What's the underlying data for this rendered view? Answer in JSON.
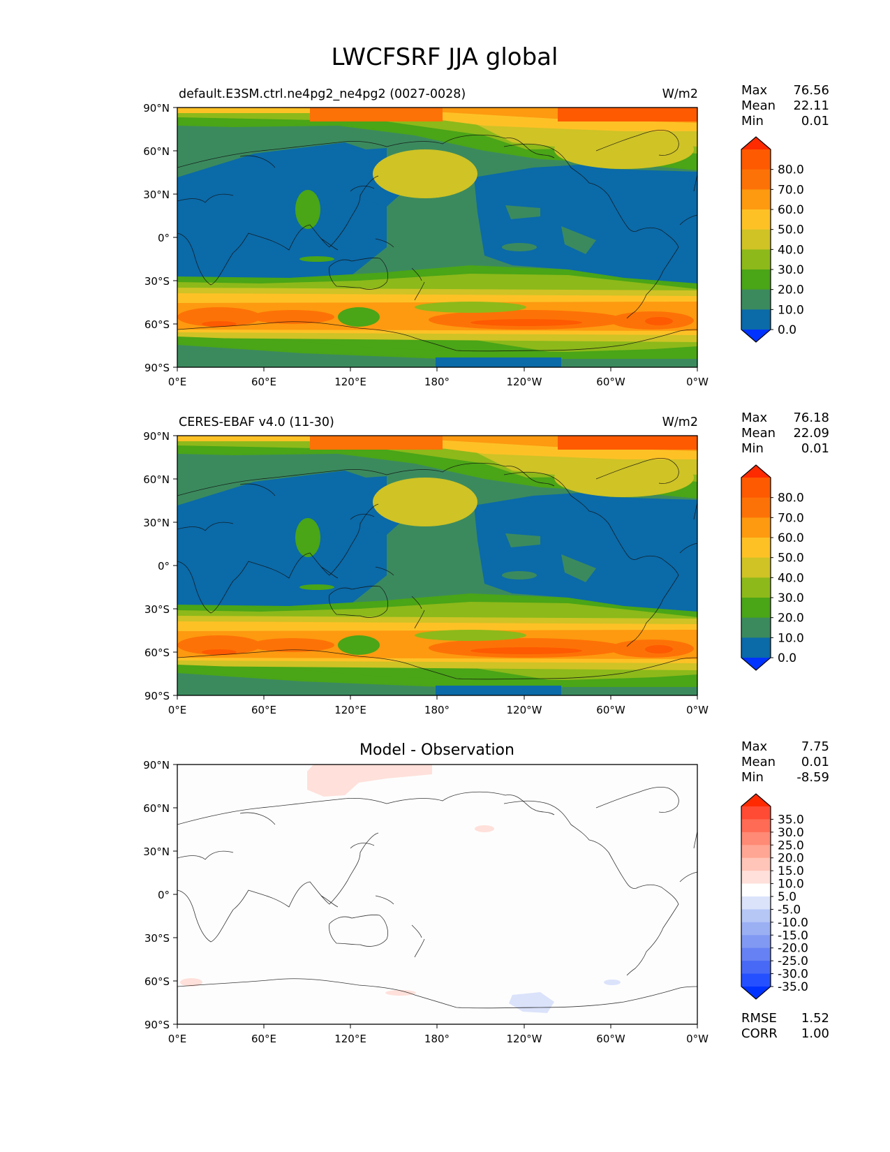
{
  "figure": {
    "title": "LWCFSRF JJA global"
  },
  "axis_ticks": {
    "lat": [
      "90°N",
      "60°N",
      "30°N",
      "0°",
      "30°S",
      "60°S",
      "90°S"
    ],
    "lon": [
      "0°E",
      "60°E",
      "120°E",
      "180°",
      "120°W",
      "60°W",
      "0°W"
    ]
  },
  "colors": {
    "field_levels": [
      "#0033ff",
      "#0b6aa8",
      "#3b8a5e",
      "#4aa517",
      "#8db91a",
      "#cfc326",
      "#fdc126",
      "#fd9a10",
      "#fd7206",
      "#fd5a02",
      "#fe2a00"
    ],
    "diff_levels": [
      "#0033ff",
      "#2550ff",
      "#4869f5",
      "#6681f3",
      "#8199f2",
      "#9bb0f3",
      "#b6c6f5",
      "#dbe3fb",
      "#ffffff",
      "#ffe0da",
      "#ffc5b8",
      "#ffa694",
      "#ff8a75",
      "#ff6b55",
      "#ff4a34",
      "#ff2a00"
    ]
  },
  "chart_data": [
    {
      "type": "heatmap",
      "panel": "model",
      "title": "default.E3SM.ctrl.ne4pg2_ne4pg2 (0027-0028)",
      "units": "W/m2",
      "stats": {
        "max_label": "Max",
        "max": "76.56",
        "mean_label": "Mean",
        "mean": "22.11",
        "min_label": "Min",
        "min": "0.01"
      },
      "colorbar_ticks": [
        "80.0",
        "70.0",
        "60.0",
        "50.0",
        "40.0",
        "30.0",
        "20.0",
        "10.0",
        "0.0"
      ],
      "xlim": [
        0,
        360
      ],
      "ylim": [
        -90,
        90
      ],
      "zonal_profile": {
        "lat": [
          90,
          75,
          60,
          45,
          30,
          15,
          0,
          -15,
          -30,
          -45,
          -60,
          -75,
          -90
        ],
        "value": [
          62,
          45,
          28,
          22,
          12,
          16,
          12,
          16,
          22,
          48,
          62,
          22,
          20
        ]
      }
    },
    {
      "type": "heatmap",
      "panel": "observation",
      "title": "CERES-EBAF v4.0 (11-30)",
      "units": "W/m2",
      "stats": {
        "max_label": "Max",
        "max": "76.18",
        "mean_label": "Mean",
        "mean": "22.09",
        "min_label": "Min",
        "min": "0.01"
      },
      "colorbar_ticks": [
        "80.0",
        "70.0",
        "60.0",
        "50.0",
        "40.0",
        "30.0",
        "20.0",
        "10.0",
        "0.0"
      ],
      "xlim": [
        0,
        360
      ],
      "ylim": [
        -90,
        90
      ],
      "zonal_profile": {
        "lat": [
          90,
          75,
          60,
          45,
          30,
          15,
          0,
          -15,
          -30,
          -45,
          -60,
          -75,
          -90
        ],
        "value": [
          62,
          45,
          28,
          22,
          12,
          16,
          12,
          16,
          22,
          48,
          62,
          22,
          20
        ]
      }
    },
    {
      "type": "heatmap",
      "panel": "difference",
      "title": "Model - Observation",
      "stats": {
        "max_label": "Max",
        "max": "7.75",
        "mean_label": "Mean",
        "mean": "0.01",
        "min_label": "Min",
        "min": "-8.59"
      },
      "colorbar_ticks": [
        "35.0",
        "30.0",
        "25.0",
        "20.0",
        "15.0",
        "10.0",
        "5.0",
        "-5.0",
        "-10.0",
        "-15.0",
        "-20.0",
        "-25.0",
        "-30.0",
        "-35.0"
      ],
      "rmse_label": "RMSE",
      "rmse": "1.52",
      "corr_label": "CORR",
      "corr": "1.00",
      "xlim": [
        0,
        360
      ],
      "ylim": [
        -90,
        90
      ]
    }
  ]
}
